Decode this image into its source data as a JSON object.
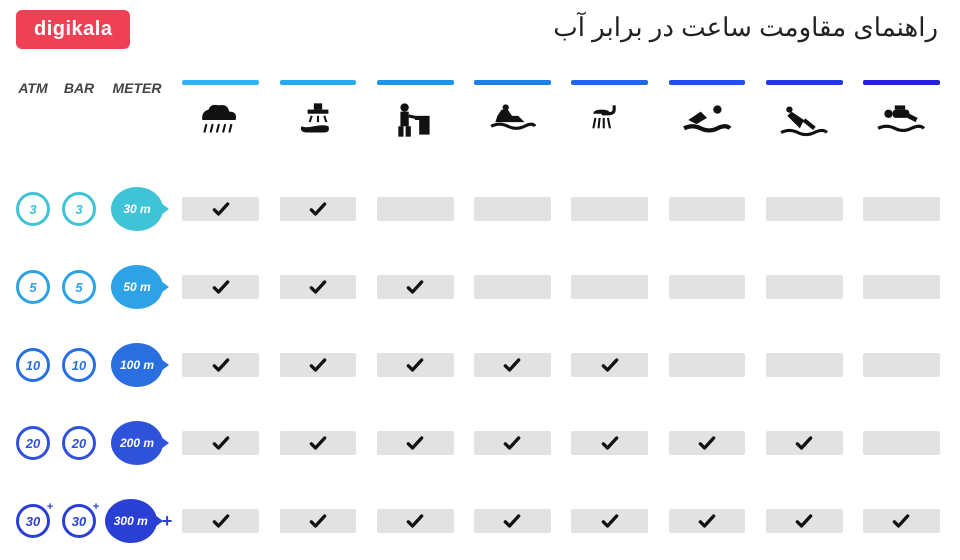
{
  "brand": {
    "logo_text": "digikala",
    "logo_bg": "#ef4056"
  },
  "title": "راهنمای مقاومت ساعت در برابر آب",
  "headers": {
    "atm": "ATM",
    "bar": "BAR",
    "meter": "METER"
  },
  "activities": [
    {
      "id": "rain",
      "bar_color": "#34b4f4"
    },
    {
      "id": "wash",
      "bar_color": "#2aa8ef"
    },
    {
      "id": "work",
      "bar_color": "#1f93e8"
    },
    {
      "id": "jetski",
      "bar_color": "#1f7fe6"
    },
    {
      "id": "shower",
      "bar_color": "#2067e2"
    },
    {
      "id": "swim",
      "bar_color": "#2350df"
    },
    {
      "id": "dive",
      "bar_color": "#2538d8"
    },
    {
      "id": "scuba",
      "bar_color": "#2621cf"
    }
  ],
  "rows": [
    {
      "atm": "3",
      "bar": "3",
      "meter": "30 m",
      "ring": "#3fc3d6",
      "bubble_bg": "#3fc3d6",
      "plus": false,
      "checks": [
        true,
        true,
        false,
        false,
        false,
        false,
        false,
        false
      ]
    },
    {
      "atm": "5",
      "bar": "5",
      "meter": "50 m",
      "ring": "#2ea2e6",
      "bubble_bg": "#2ea2e6",
      "plus": false,
      "checks": [
        true,
        true,
        true,
        false,
        false,
        false,
        false,
        false
      ]
    },
    {
      "atm": "10",
      "bar": "10",
      "meter": "100 m",
      "ring": "#2a6fe0",
      "bubble_bg": "#2a6fe0",
      "plus": false,
      "checks": [
        true,
        true,
        true,
        true,
        true,
        false,
        false,
        false
      ]
    },
    {
      "atm": "20",
      "bar": "20",
      "meter": "200 m",
      "ring": "#2f52da",
      "bubble_bg": "#2f52da",
      "plus": false,
      "checks": [
        true,
        true,
        true,
        true,
        true,
        true,
        true,
        false
      ]
    },
    {
      "atm": "30",
      "bar": "30",
      "meter": "300 m",
      "ring": "#2a3fd4",
      "bubble_bg": "#2a3fd4",
      "plus": true,
      "checks": [
        true,
        true,
        true,
        true,
        true,
        true,
        true,
        true
      ]
    }
  ],
  "style": {
    "background": "#ffffff",
    "cell_bg": "#e2e2e2",
    "check_color": "#111111",
    "title_fontsize": 26,
    "logo_fontsize": 20
  }
}
